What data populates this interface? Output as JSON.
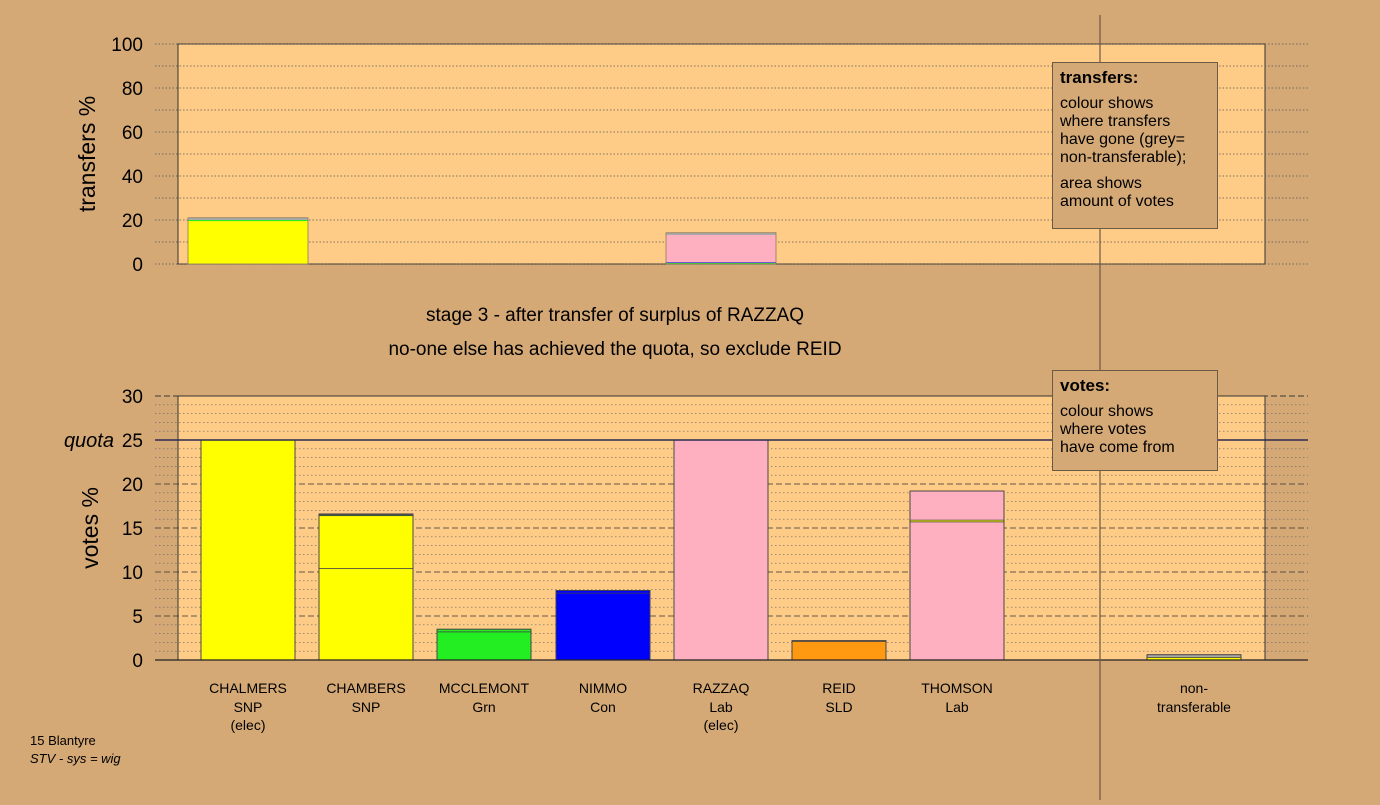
{
  "stage_info": {
    "line1": "stage 3 - after transfer of surplus of RAZZAQ",
    "line2": "no-one else has achieved the quota, so exclude REID"
  },
  "footer": {
    "ward": "15 Blantyre",
    "system": "STV - sys = wig"
  },
  "legend_transfers": {
    "title": "transfers:",
    "lines1": [
      "colour shows",
      "where transfers",
      "have gone (grey=",
      "non-transferable);"
    ],
    "lines2": [
      "area shows",
      "amount of votes"
    ]
  },
  "legend_votes": {
    "title": "votes:",
    "lines": [
      "colour shows",
      "where votes",
      "have come from"
    ]
  },
  "colors": {
    "background": "#d4a976",
    "plot_bg": "#ffcc88",
    "SNP": "#ffff00",
    "Grn": "#22ee22",
    "Con": "#0000ff",
    "Lab": "#ffb0c0",
    "SLD": "#ff9911",
    "nontransferable": "#aaaaaa"
  },
  "chart_data": [
    {
      "type": "bar",
      "stacked": true,
      "title": "",
      "ylabel": "transfers %",
      "ylim": [
        0,
        100
      ],
      "yticks": [
        0,
        20,
        40,
        60,
        80,
        100
      ],
      "grid": true,
      "categories": [
        "CHALMERS",
        "CHAMBERS",
        "MCCLEMONT",
        "NIMMO",
        "RAZZAQ",
        "REID",
        "THOMSON"
      ],
      "bars": [
        {
          "category": "CHALMERS",
          "segments": [
            {
              "color": "#ffff00",
              "value": 19.5
            },
            {
              "color": "#22ee22",
              "value": 0.5
            },
            {
              "color": "#aaaaaa",
              "value": 1.0
            }
          ]
        },
        {
          "category": "RAZZAQ",
          "segments": [
            {
              "color": "#22ee22",
              "value": 0.5
            },
            {
              "color": "#0000ff",
              "value": 0.3
            },
            {
              "color": "#ffb0c0",
              "value": 12.4
            },
            {
              "color": "#aaaaaa",
              "value": 1.0
            }
          ]
        }
      ]
    },
    {
      "type": "bar",
      "stacked": true,
      "title": "",
      "ylabel": "votes %",
      "ylim": [
        0,
        30
      ],
      "yticks": [
        0,
        5,
        10,
        15,
        20,
        25,
        30
      ],
      "quota": 25,
      "quota_label": "quota",
      "grid": true,
      "candidates": [
        {
          "name": "CHALMERS",
          "party": "SNP",
          "note": "(elec)",
          "segments": [
            {
              "color": "#ffff00",
              "value": 25.0
            }
          ]
        },
        {
          "name": "CHAMBERS",
          "party": "SNP",
          "note": "",
          "segments": [
            {
              "color": "#ffff00",
              "value": 10.4
            },
            {
              "color": "#ffff00",
              "value": 6.0
            },
            {
              "color": "#22ee22",
              "value": 0.1
            },
            {
              "color": "#aaaaaa",
              "value": 0.1
            }
          ]
        },
        {
          "name": "MCCLEMONT",
          "party": "Grn",
          "note": "",
          "segments": [
            {
              "color": "#22ee22",
              "value": 3.2
            },
            {
              "color": "#22ee22",
              "value": 0.3
            }
          ]
        },
        {
          "name": "NIMMO",
          "party": "Con",
          "note": "",
          "segments": [
            {
              "color": "#0000ff",
              "value": 7.6
            },
            {
              "color": "#0000ff",
              "value": 0.3
            }
          ]
        },
        {
          "name": "RAZZAQ",
          "party": "Lab",
          "note": "(elec)",
          "segments": [
            {
              "color": "#ffb0c0",
              "value": 25.0
            }
          ]
        },
        {
          "name": "REID",
          "party": "SLD",
          "note": "",
          "segments": [
            {
              "color": "#ff9911",
              "value": 2.1
            },
            {
              "color": "#ff9911",
              "value": 0.1
            }
          ]
        },
        {
          "name": "THOMSON",
          "party": "Lab",
          "note": "",
          "segments": [
            {
              "color": "#ffb0c0",
              "value": 15.7
            },
            {
              "color": "#ffff00",
              "value": 0.2
            },
            {
              "color": "#ffb0c0",
              "value": 3.3
            }
          ]
        }
      ],
      "nontransferable": {
        "label1": "non-",
        "label2": "transferable",
        "segments": [
          {
            "color": "#ffff00",
            "value": 0.3
          },
          {
            "color": "#aaaaaa",
            "value": 0.3
          }
        ]
      }
    }
  ]
}
